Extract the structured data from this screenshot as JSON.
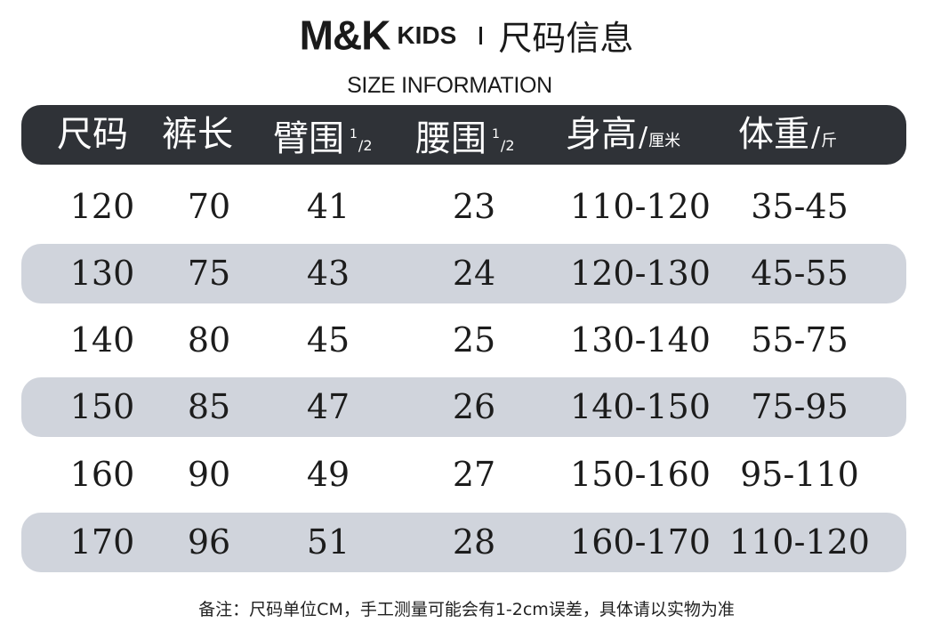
{
  "brand": {
    "name": "M&K",
    "sub": "KIDS",
    "title_cn": "尺码信息"
  },
  "subtitle": "SIZE INFORMATION",
  "header": {
    "size": "尺码",
    "pants_length": "裤长",
    "arm": "臂围",
    "arm_fraction_num": "1",
    "arm_fraction_den": "/2",
    "waist": "腰围",
    "waist_fraction_num": "1",
    "waist_fraction_den": "/2",
    "height": "身高",
    "height_unit": "厘米",
    "weight": "体重",
    "weight_unit": "斤",
    "slash": "/"
  },
  "rows": [
    {
      "size": "120",
      "pants": "70",
      "arm": "41",
      "waist": "23",
      "height": "110-120",
      "weight": "35-45"
    },
    {
      "size": "130",
      "pants": "75",
      "arm": "43",
      "waist": "24",
      "height": "120-130",
      "weight": "45-55"
    },
    {
      "size": "140",
      "pants": "80",
      "arm": "45",
      "waist": "25",
      "height": "130-140",
      "weight": "55-75"
    },
    {
      "size": "150",
      "pants": "85",
      "arm": "47",
      "waist": "26",
      "height": "140-150",
      "weight": "75-95"
    },
    {
      "size": "160",
      "pants": "90",
      "arm": "49",
      "waist": "27",
      "height": "150-160",
      "weight": "95-110"
    },
    {
      "size": "170",
      "pants": "96",
      "arm": "51",
      "waist": "28",
      "height": "160-170",
      "weight": "110-120"
    }
  ],
  "note": "备注：尺码单位CM，手工测量可能会有1-2cm误差，具体请以实物为准",
  "colors": {
    "header_bg": "#2f3237",
    "shaded_row": "#d0d4dc",
    "text": "#1c1c1c"
  }
}
